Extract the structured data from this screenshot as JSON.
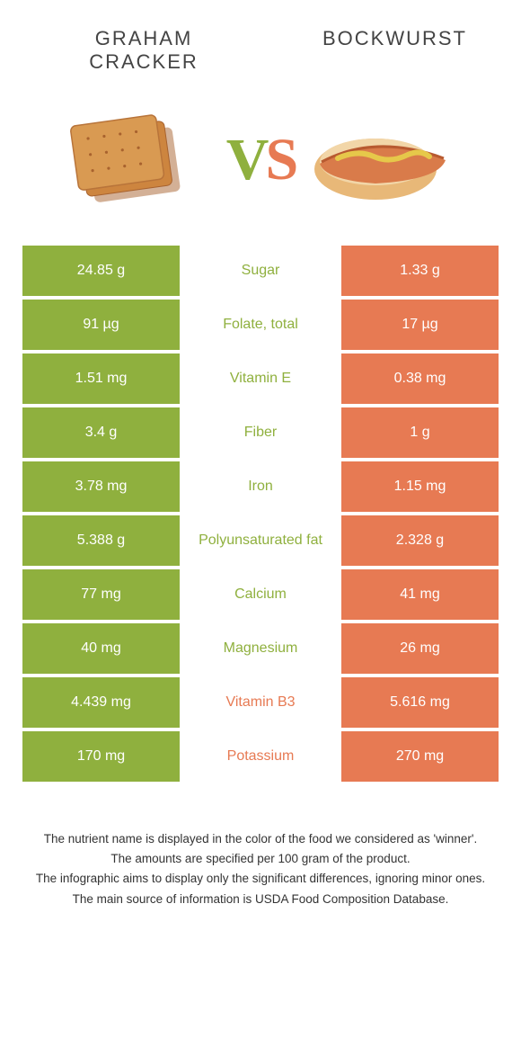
{
  "colors": {
    "left_bg": "#8fb03e",
    "right_bg": "#e77a53",
    "left_accent": "#8fb03e",
    "right_accent": "#e77a53",
    "text_dark": "#444444",
    "vs_v": "#8fb03e",
    "vs_s": "#e77a53"
  },
  "header": {
    "left_title": "GRAHAM\nCRACKER",
    "right_title": "BOCKWURST"
  },
  "vs": {
    "v": "V",
    "s": "S"
  },
  "rows": [
    {
      "left": "24.85 g",
      "label": "Sugar",
      "right": "1.33 g",
      "winner": "left"
    },
    {
      "left": "91 µg",
      "label": "Folate, total",
      "right": "17 µg",
      "winner": "left"
    },
    {
      "left": "1.51 mg",
      "label": "Vitamin E",
      "right": "0.38 mg",
      "winner": "left"
    },
    {
      "left": "3.4 g",
      "label": "Fiber",
      "right": "1 g",
      "winner": "left"
    },
    {
      "left": "3.78 mg",
      "label": "Iron",
      "right": "1.15 mg",
      "winner": "left"
    },
    {
      "left": "5.388 g",
      "label": "Polyunsaturated fat",
      "right": "2.328 g",
      "winner": "left"
    },
    {
      "left": "77 mg",
      "label": "Calcium",
      "right": "41 mg",
      "winner": "left"
    },
    {
      "left": "40 mg",
      "label": "Magnesium",
      "right": "26 mg",
      "winner": "left"
    },
    {
      "left": "4.439 mg",
      "label": "Vitamin B3",
      "right": "5.616 mg",
      "winner": "right"
    },
    {
      "left": "170 mg",
      "label": "Potassium",
      "right": "270 mg",
      "winner": "right"
    }
  ],
  "footnotes": [
    "The nutrient name is displayed in the color of the food we considered as 'winner'.",
    "The amounts are specified per 100 gram of the product.",
    "The infographic aims to display only the significant differences, ignoring minor ones.",
    "The main source of information is USDA Food Composition Database."
  ]
}
